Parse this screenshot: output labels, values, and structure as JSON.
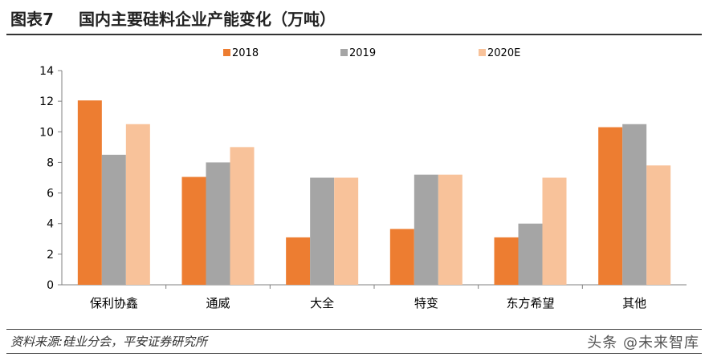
{
  "header": {
    "figure_label": "图表7",
    "title": "国内主要硅料企业产能变化（万吨）"
  },
  "chart_data": {
    "type": "bar",
    "categories": [
      "保利协鑫",
      "通威",
      "大全",
      "特变",
      "东方希望",
      "其他"
    ],
    "series": [
      {
        "name": "2018",
        "color": "#ED7D31",
        "values": [
          12.05,
          7.05,
          3.1,
          3.65,
          3.1,
          10.3
        ]
      },
      {
        "name": "2019",
        "color": "#A5A5A5",
        "values": [
          8.5,
          8.0,
          7.0,
          7.2,
          4.0,
          10.5
        ]
      },
      {
        "name": "2020E",
        "color": "#F8C29A",
        "values": [
          10.5,
          9.0,
          7.0,
          7.2,
          7.0,
          7.8
        ]
      }
    ],
    "ylim": [
      0,
      14
    ],
    "yticks": [
      0,
      2,
      4,
      6,
      8,
      10,
      12,
      14
    ],
    "grid": false,
    "legend_position": "top"
  },
  "footer": {
    "source": "资料来源:硅业分会，平安证券研究所",
    "watermark": "头条 @未来智库"
  }
}
